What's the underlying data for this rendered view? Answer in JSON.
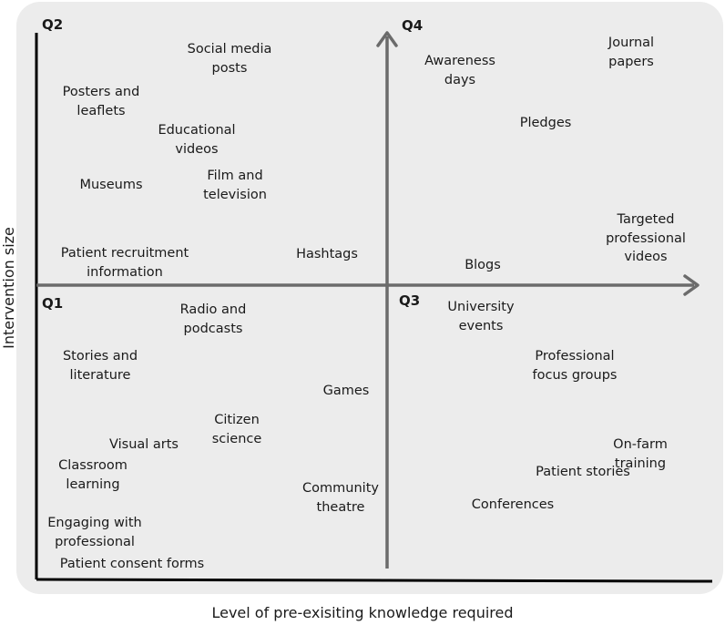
{
  "axes": {
    "x_label": "Level of pre-exisiting knowledge required",
    "y_label": "Intervention size",
    "colors": {
      "background": "#ececec",
      "center_arrows": "#6b6b6b",
      "frame": "#000000"
    }
  },
  "quadrants": {
    "q1": "Q1",
    "q2": "Q2",
    "q3": "Q3",
    "q4": "Q4"
  },
  "items": {
    "social_media": "Social media\nposts",
    "posters": "Posters and\nleaflets",
    "educational_videos": "Educational\nvideos",
    "museums": "Museums",
    "film_tv": "Film and\ntelevision",
    "patient_recruitment": "Patient recruitment\ninformation",
    "hashtags": "Hashtags",
    "awareness_days": "Awareness\ndays",
    "journal_papers": "Journal\npapers",
    "pledges": "Pledges",
    "targeted_videos": "Targeted\nprofessional\nvideos",
    "blogs": "Blogs",
    "radio": "Radio and\npodcasts",
    "stories": "Stories and\nliterature",
    "games": "Games",
    "citizen_science": "Citizen\nscience",
    "visual_arts": "Visual arts",
    "classroom": "Classroom\nlearning",
    "community_theatre": "Community\ntheatre",
    "engaging": "Engaging with\nprofessional",
    "consent_forms": "Patient consent forms",
    "university_events": "University\nevents",
    "focus_groups": "Professional\nfocus groups",
    "on_farm": "On-farm training",
    "patient_stories": "Patient stories",
    "conferences": "Conferences"
  }
}
